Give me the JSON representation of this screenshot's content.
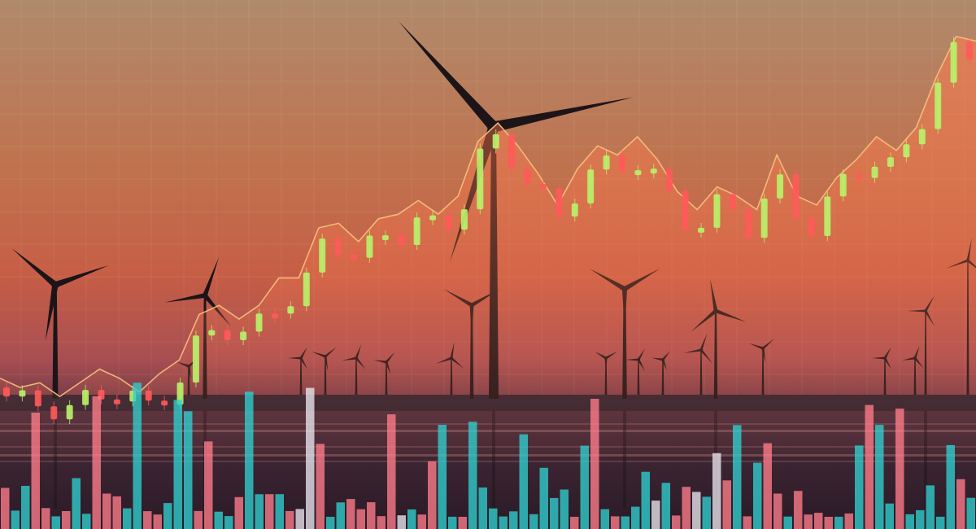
{
  "scene": {
    "description_tag": "photo-composite",
    "sky_colors": [
      "#b08a6c",
      "#c0724e",
      "#c65e46",
      "#a84e52",
      "#5a3040"
    ],
    "water_color": "#3a2434",
    "area_stroke": "#f6c27e",
    "area_fill": "#ff7a4e",
    "candle_up_color": "#b8f36a",
    "candle_down_color": "#ff5a5a",
    "volume_colors": [
      "#2fd0d0",
      "#ff7c8a",
      "#e9e6ee"
    ],
    "turbine_color": "#1c1418",
    "grid": true
  },
  "chart_data": {
    "type": "area",
    "title": "",
    "xlabel": "",
    "ylabel": "",
    "ylim": [
      0,
      100
    ],
    "x": [
      0,
      1,
      2,
      3,
      4,
      5,
      6,
      7,
      8,
      9,
      10,
      11,
      12,
      13,
      14,
      15,
      16,
      17,
      18,
      19,
      20,
      21,
      22,
      23,
      24,
      25,
      26,
      27,
      28,
      29,
      30,
      31,
      32,
      33,
      34,
      35,
      36,
      37,
      38,
      39,
      40,
      41,
      42,
      43,
      44,
      45,
      46,
      47,
      48,
      49
    ],
    "series": [
      {
        "values": [
          17,
          15,
          16,
          13,
          16,
          19,
          17,
          14,
          18,
          21,
          31,
          33,
          30,
          33,
          39,
          39,
          50,
          51,
          47,
          52,
          53,
          56,
          53,
          57,
          69,
          73,
          68,
          62,
          55,
          63,
          68,
          66,
          70,
          65,
          58,
          54,
          59,
          57,
          54,
          66,
          57,
          55,
          61,
          65,
          70,
          67,
          72,
          83,
          92,
          91
        ]
      }
    ],
    "candlesticks": {
      "count": 62,
      "up_color": "#b8f36a",
      "down_color": "#ff5a5a"
    },
    "volume_bars": {
      "count": 96
    }
  }
}
